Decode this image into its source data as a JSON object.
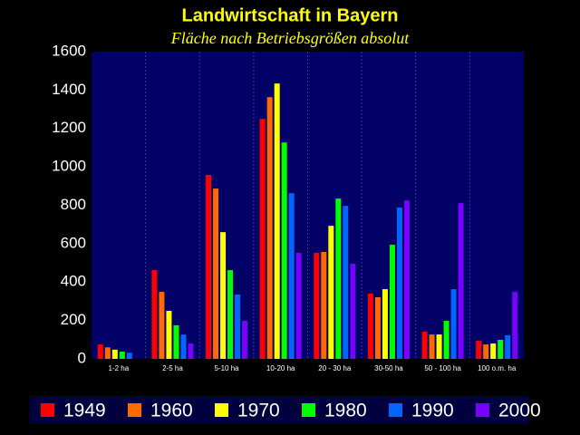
{
  "chart_data": {
    "type": "bar",
    "title": "Landwirtschaft in Bayern",
    "subtitle": "Fläche nach Betriebsgrößen absolut",
    "categories": [
      "1-2 ha",
      "2-5 ha",
      "5-10 ha",
      "10-20 ha",
      "20 - 30 ha",
      "30-50 ha",
      "50 - 100 ha",
      "100 o.m. ha"
    ],
    "series": [
      {
        "name": "1949",
        "color": "#ff0000",
        "values": [
          75,
          462,
          958,
          1250,
          552,
          340,
          142,
          94
        ]
      },
      {
        "name": "1960",
        "color": "#ff6a00",
        "values": [
          60,
          349,
          887,
          1363,
          557,
          321,
          127,
          75
        ]
      },
      {
        "name": "1970",
        "color": "#ffff00",
        "values": [
          48,
          250,
          660,
          1434,
          693,
          363,
          127,
          80
        ]
      },
      {
        "name": "1980",
        "color": "#00ff00",
        "values": [
          38,
          175,
          462,
          1127,
          835,
          594,
          198,
          99
        ]
      },
      {
        "name": "1990",
        "color": "#0066ff",
        "values": [
          32,
          127,
          335,
          863,
          797,
          788,
          363,
          123
        ]
      },
      {
        "name": "2000",
        "color": "#7700ff",
        "values": [
          null,
          80,
          198,
          552,
          495,
          825,
          811,
          349
        ]
      }
    ],
    "ylim": [
      0,
      1600
    ],
    "yticks": [
      0,
      200,
      400,
      600,
      800,
      1000,
      1200,
      1400,
      1600
    ],
    "grid": "vertical",
    "legend": "bottom"
  }
}
